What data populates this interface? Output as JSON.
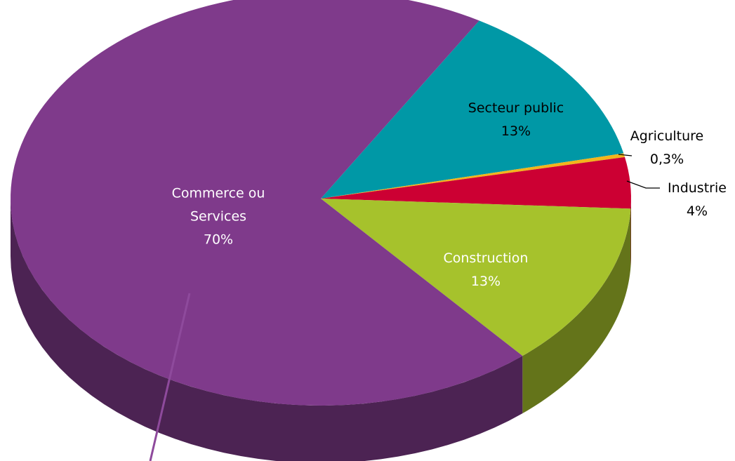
{
  "chart_data": {
    "type": "pie",
    "categories": [
      "Secteur public",
      "Agriculture",
      "Industrie",
      "Construction",
      "Commerce ou Services"
    ],
    "values": [
      13,
      0.3,
      4,
      13,
      70
    ],
    "value_labels": [
      "13%",
      "0,3%",
      "4%",
      "13%",
      "70%"
    ],
    "colors": [
      "#0098a6",
      "#f2b51c",
      "#cc0033",
      "#a6c22c",
      "#7f3a8b"
    ]
  }
}
